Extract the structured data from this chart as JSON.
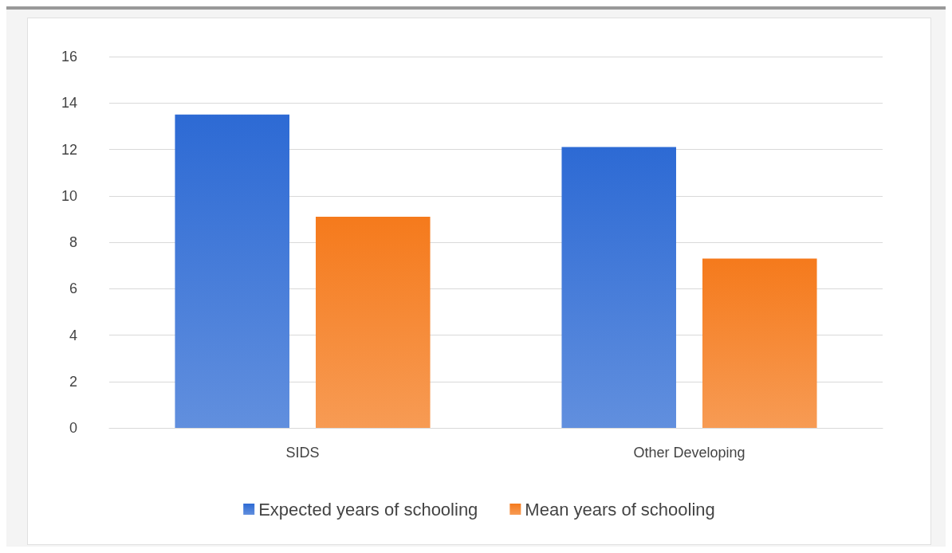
{
  "chart_data": {
    "type": "bar",
    "categories": [
      "SIDS",
      "Other Developing"
    ],
    "series": [
      {
        "name": "Expected years of schooling",
        "color": "#2d6ad4",
        "values": [
          13.5,
          12.1
        ]
      },
      {
        "name": "Mean years of schooling",
        "color": "#f57a1c",
        "values": [
          9.1,
          7.3
        ]
      }
    ],
    "ylim": [
      0,
      16
    ],
    "yticks": [
      0,
      2,
      4,
      6,
      8,
      10,
      12,
      14,
      16
    ],
    "grid": "y",
    "legend": "bottom"
  }
}
